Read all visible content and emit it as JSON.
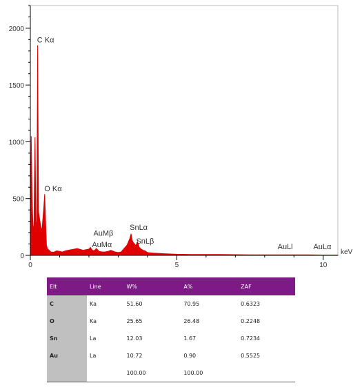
{
  "chart_data": {
    "type": "line",
    "xlabel": "",
    "ylabel": "",
    "x_unit": "keV",
    "xlim": [
      0,
      10.5
    ],
    "ylim": [
      0,
      2200
    ],
    "x_ticks": [
      0,
      5,
      10
    ],
    "y_ticks": [
      0,
      500,
      1000,
      1500,
      2000
    ],
    "grid": false,
    "line_color": "#e00000",
    "spectrum": {
      "x": [
        0.0,
        0.03,
        0.06,
        0.09,
        0.12,
        0.16,
        0.19,
        0.22,
        0.25,
        0.28,
        0.31,
        0.34,
        0.37,
        0.4,
        0.43,
        0.46,
        0.49,
        0.52,
        0.55,
        0.58,
        0.62,
        0.66,
        0.7,
        0.8,
        0.9,
        1.0,
        1.1,
        1.2,
        1.4,
        1.6,
        1.8,
        2.0,
        2.05,
        2.1,
        2.15,
        2.2,
        2.25,
        2.35,
        2.45,
        2.55,
        2.65,
        2.75,
        2.9,
        3.0,
        3.1,
        3.2,
        3.3,
        3.4,
        3.44,
        3.48,
        3.52,
        3.56,
        3.6,
        3.66,
        3.72,
        3.78,
        3.85,
        3.92,
        4.0,
        4.2,
        4.5,
        5.0,
        5.5,
        6.0,
        6.5,
        7.0,
        7.5,
        8.0,
        8.5,
        9.0,
        9.5,
        10.0,
        10.5
      ],
      "y": [
        0,
        1050,
        520,
        260,
        240,
        1040,
        300,
        230,
        1850,
        380,
        330,
        280,
        240,
        230,
        330,
        420,
        540,
        300,
        90,
        60,
        50,
        40,
        30,
        28,
        40,
        35,
        30,
        40,
        50,
        60,
        45,
        55,
        70,
        50,
        40,
        45,
        60,
        35,
        30,
        30,
        35,
        45,
        30,
        25,
        30,
        60,
        90,
        150,
        190,
        130,
        110,
        100,
        85,
        120,
        70,
        55,
        45,
        40,
        25,
        20,
        15,
        10,
        8,
        8,
        7,
        6,
        5,
        5,
        5,
        4,
        4,
        3,
        3
      ]
    },
    "annotations": [
      {
        "text": "C Kα",
        "x": 0.277,
        "y": 1850
      },
      {
        "text": "O Kα",
        "x": 0.525,
        "y": 540
      },
      {
        "text": "AuMβ",
        "x": 2.2,
        "y": 150
      },
      {
        "text": "AuMα",
        "x": 2.15,
        "y": 50
      },
      {
        "text": "SnLα",
        "x": 3.44,
        "y": 200
      },
      {
        "text": "SnLβ",
        "x": 3.66,
        "y": 80
      },
      {
        "text": "AuLl",
        "x": 8.49,
        "y": 30
      },
      {
        "text": "AuLα",
        "x": 9.71,
        "y": 30
      }
    ],
    "table": {
      "columns": [
        "Elt",
        "Line",
        "W%",
        "A%",
        "ZAF"
      ],
      "rows": [
        [
          "C",
          "Ka",
          "51.60",
          "70.95",
          "0.6323"
        ],
        [
          "O",
          "Ka",
          "25.65",
          "26.48",
          "0.2248"
        ],
        [
          "Sn",
          "La",
          "12.03",
          "1.67",
          "0.7234"
        ],
        [
          "Au",
          "La",
          "10.72",
          "0.90",
          "0.5525"
        ],
        [
          "",
          "",
          "100.00",
          "100.00",
          ""
        ]
      ]
    }
  }
}
